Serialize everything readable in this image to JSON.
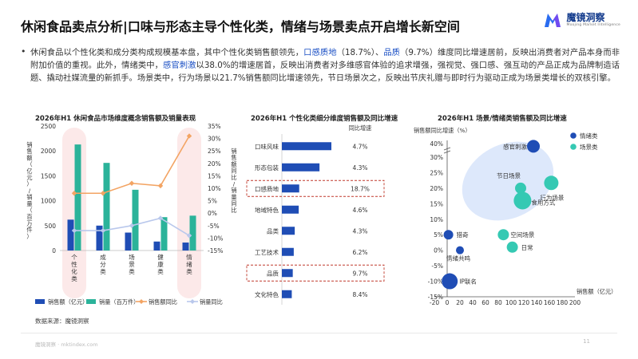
{
  "header": {
    "title": "休闲食品卖点分析|口味与形态主导个性化类，情绪与场景卖点开启增长新空间",
    "logo_cn": "魔镜洞察",
    "logo_en": "Moojing Market Intelligence"
  },
  "summary": {
    "bullet": "•",
    "p1": "休闲食品以个性化类和成分类构成规模基本盘，其中个性化类销售额领先，",
    "h1": "口感质地",
    "p2": "（18.7%）、",
    "h2": "品质",
    "p3": "（9.7%）维度同比增速居前，反映出消费者对产品本身而非附加价值的重视。此外，情绪类中，",
    "h3": "感官刺激",
    "p4": "以38.0%的增速居首，反映出消费者对多维感官体验的追求增强，强视觉、强口感、强互动的产品正成为品牌制造话题、撬动社媒流量的新抓手。场景类中，行为场景以21.7%销售额同比增速领先，节日场景次之，反映出节庆礼赠与即时行为驱动正成为场景类增长的双核引擎。"
  },
  "colors": {
    "sales_bar": "#1f4db5",
    "volume_bar": "#2bb39a",
    "sales_growth_line": "#f3a463",
    "volume_growth_line": "#b9c8ec",
    "highlight_fill": "#fbe3e3",
    "highlight_box": "#c0392b",
    "bubble_bg": "#dde8fb",
    "emotion": "#1f4db5",
    "scene": "#35c9b3"
  },
  "chart_data": [
    {
      "type": "bar",
      "title": "2026年H1 休闲食品市场维度概念销售额及销量表现",
      "categories": [
        "个性化类",
        "成分类",
        "场景类",
        "健康类",
        "情绪类"
      ],
      "ylabel_left": "销售额（亿元）/销量（百万件）",
      "ylabel_right": "销售额同比/销量同比",
      "ylim_left": [
        0,
        2500
      ],
      "yticks_left": [
        "0",
        "500",
        "1000",
        "1500",
        "2000",
        "2500"
      ],
      "ylim_right": [
        -15,
        35
      ],
      "yticks_right": [
        "-15%",
        "-10%",
        "-5%",
        "0%",
        "5%",
        "10%",
        "15%",
        "20%",
        "25%",
        "30%",
        "35%"
      ],
      "series": [
        {
          "name": "销售额（亿元）",
          "kind": "bar",
          "values": [
            620,
            500,
            360,
            180,
            160
          ]
        },
        {
          "name": "销量（百万件）",
          "kind": "bar",
          "values": [
            2130,
            1760,
            1220,
            670,
            700
          ]
        },
        {
          "name": "销售额同比",
          "kind": "line",
          "values": [
            8,
            8,
            12,
            11,
            31
          ]
        },
        {
          "name": "销量同比",
          "kind": "line",
          "values": [
            -7,
            -7,
            -5,
            -2,
            -9
          ]
        }
      ],
      "highlighted": [
        "个性化类",
        "情绪类"
      ],
      "legend_position": "bottom"
    },
    {
      "type": "bar",
      "orientation": "horizontal",
      "title": "2026年H1 个性化类细分维度销售额及同比增速",
      "growth_header": "同比增速",
      "categories": [
        "口味风味",
        "形态包装",
        "口感质地",
        "地域特色",
        "品类",
        "工艺技术",
        "品质",
        "文化特色"
      ],
      "values": [
        100,
        76,
        35,
        34,
        26,
        24,
        22,
        20
      ],
      "growth": [
        "4.7%",
        "4.3%",
        "18.7%",
        "4.6%",
        "4.3%",
        "6.2%",
        "9.7%",
        "8.4%"
      ],
      "highlighted": [
        "口感质地",
        "品质"
      ]
    },
    {
      "type": "scatter",
      "title": "2026年H1 场景/情绪类销售额及同比增速",
      "xlabel": "销售额（亿元）",
      "ylabel": "销售额同比增速（%）",
      "xlim": [
        -20,
        200
      ],
      "ylim": [
        -15,
        40
      ],
      "xticks": [
        "-20",
        "0",
        "20",
        "40",
        "60",
        "80",
        "100",
        "120",
        "140",
        "160",
        "180",
        "200"
      ],
      "yticks": [
        "-15%",
        "-10%",
        "-5%",
        "0%",
        "5%",
        "10%",
        "15%",
        "20%",
        "25%",
        "30%",
        "40%"
      ],
      "legend": [
        {
          "name": "情绪类",
          "group": "emotion"
        },
        {
          "name": "场景类",
          "group": "scene"
        }
      ],
      "points": [
        {
          "label": "感官刺激",
          "group": "emotion",
          "x": 135,
          "y": 38,
          "size": 8
        },
        {
          "label": "行为场景",
          "group": "scene",
          "x": 163,
          "y": 21.7,
          "size": 9
        },
        {
          "label": "节日场景",
          "group": "scene",
          "x": 115,
          "y": 20,
          "size": 7
        },
        {
          "label": "食用方式",
          "group": "scene",
          "x": 118,
          "y": 16,
          "size": 11
        },
        {
          "label": "猎奇",
          "group": "emotion",
          "x": 2,
          "y": 5,
          "size": 6
        },
        {
          "label": "空间场景",
          "group": "scene",
          "x": 88,
          "y": 5,
          "size": 7
        },
        {
          "label": "情绪共鸣",
          "group": "emotion",
          "x": 20,
          "y": 0,
          "size": 5
        },
        {
          "label": "日常",
          "group": "scene",
          "x": 102,
          "y": 1,
          "size": 7
        },
        {
          "label": "IP联名",
          "group": "emotion",
          "x": 4,
          "y": -10,
          "size": 10
        }
      ]
    }
  ],
  "source": "数据来源：魔镜洞察",
  "footer": "魔镜洞察 · mktindex.com",
  "page_number": "11"
}
